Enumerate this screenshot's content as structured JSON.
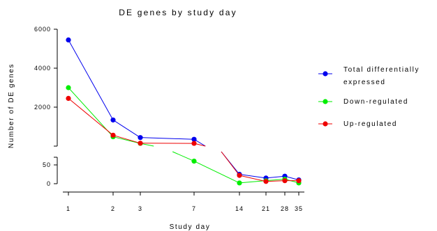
{
  "chart_data": {
    "type": "line",
    "title": "DE genes by study day",
    "xlabel": "Study day",
    "ylabel": "Number of DE genes",
    "x": [
      1,
      2,
      3,
      7,
      14,
      21,
      28,
      35
    ],
    "x_tick_labels": [
      "1",
      "2",
      "3",
      "7",
      "14",
      "21",
      "28",
      "35"
    ],
    "y_upper_ticks": [
      "6000",
      "4000",
      "2000"
    ],
    "y_lower_ticks": [
      "50",
      "0"
    ],
    "y_axis_break": true,
    "legend_placement": "right",
    "grid": false,
    "series": [
      {
        "name": "Total differentially expressed",
        "color": "#0000ee",
        "values": [
          5450,
          1340,
          440,
          350,
          25,
          15,
          20,
          10
        ]
      },
      {
        "name": "Down-regulated",
        "color": "#00ee00",
        "values": [
          3000,
          480,
          140,
          60,
          2,
          8,
          12,
          2
        ]
      },
      {
        "name": "Up-regulated",
        "color": "#ee0000",
        "values": [
          2450,
          560,
          150,
          140,
          22,
          6,
          8,
          8
        ]
      }
    ]
  }
}
